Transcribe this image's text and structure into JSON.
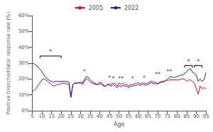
{
  "chart_data": {
    "type": "line",
    "xlabel": "Age",
    "ylabel": "Positive bronchodilator response rate (%)",
    "x": [
      5,
      6,
      7,
      8,
      9,
      10,
      11,
      12,
      13,
      14,
      15,
      16,
      17,
      18,
      19,
      20,
      21,
      22,
      23,
      24,
      25,
      26,
      27,
      28,
      29,
      30,
      31,
      32,
      33,
      34,
      35,
      36,
      37,
      38,
      39,
      40,
      41,
      42,
      43,
      44,
      45,
      46,
      47,
      48,
      49,
      50,
      51,
      52,
      53,
      54,
      55,
      56,
      57,
      58,
      59,
      60,
      61,
      62,
      63,
      64,
      65,
      66,
      67,
      68,
      69,
      70,
      71,
      72,
      73,
      74,
      75,
      76,
      77,
      78,
      79,
      80,
      81,
      82,
      83,
      84,
      85,
      86,
      87,
      88,
      89,
      90,
      91,
      92,
      93,
      94,
      95
    ],
    "series": [
      {
        "name": "2005",
        "color": "#e8001c",
        "values": [
          0.12,
          0.13,
          0.14,
          0.16,
          0.175,
          0.195,
          0.2,
          0.195,
          0.185,
          0.175,
          0.165,
          0.155,
          0.16,
          0.165,
          0.165,
          0.17,
          0.175,
          0.17,
          0.17,
          0.165,
          0.085,
          0.16,
          0.175,
          0.175,
          0.175,
          0.175,
          0.165,
          0.185,
          0.2,
          0.195,
          0.18,
          0.175,
          0.17,
          0.165,
          0.165,
          0.18,
          0.175,
          0.16,
          0.155,
          0.165,
          0.17,
          0.165,
          0.175,
          0.17,
          0.155,
          0.175,
          0.165,
          0.175,
          0.165,
          0.165,
          0.155,
          0.165,
          0.165,
          0.17,
          0.175,
          0.175,
          0.17,
          0.175,
          0.175,
          0.17,
          0.175,
          0.185,
          0.185,
          0.18,
          0.18,
          0.17,
          0.18,
          0.185,
          0.185,
          0.19,
          0.19,
          0.195,
          0.195,
          0.195,
          0.195,
          0.195,
          0.195,
          0.2,
          0.2,
          0.2,
          0.185,
          0.195,
          0.195,
          0.185,
          0.175,
          0.14,
          0.105,
          0.155,
          0.14,
          0.145,
          0.14
        ]
      },
      {
        "name": "2022",
        "color": "#1a1acd",
        "values": [
          0.3,
          0.295,
          0.285,
          0.275,
          0.26,
          0.245,
          0.225,
          0.21,
          0.2,
          0.19,
          0.185,
          0.18,
          0.185,
          0.185,
          0.185,
          0.185,
          0.185,
          0.185,
          0.185,
          0.18,
          0.085,
          0.165,
          0.175,
          0.175,
          0.175,
          0.18,
          0.175,
          0.195,
          0.215,
          0.21,
          0.195,
          0.185,
          0.175,
          0.17,
          0.165,
          0.17,
          0.165,
          0.155,
          0.155,
          0.165,
          0.16,
          0.155,
          0.165,
          0.155,
          0.145,
          0.16,
          0.15,
          0.16,
          0.155,
          0.155,
          0.145,
          0.155,
          0.155,
          0.16,
          0.16,
          0.165,
          0.16,
          0.165,
          0.165,
          0.16,
          0.165,
          0.175,
          0.175,
          0.17,
          0.17,
          0.17,
          0.175,
          0.18,
          0.18,
          0.19,
          0.2,
          0.21,
          0.215,
          0.21,
          0.21,
          0.215,
          0.22,
          0.225,
          0.225,
          0.235,
          0.245,
          0.26,
          0.265,
          0.245,
          0.235,
          0.225,
          0.185,
          0.2,
          0.185,
          0.195,
          0.24
        ]
      }
    ],
    "xlim": [
      5,
      95
    ],
    "xticks": [
      5,
      10,
      15,
      20,
      25,
      30,
      35,
      40,
      45,
      50,
      55,
      60,
      65,
      70,
      75,
      80,
      85,
      90,
      95
    ],
    "ylim": [
      0,
      0.6
    ],
    "yticks": [
      {
        "value": 0.0,
        "label": "0%"
      },
      {
        "value": 0.1,
        "label": "10%"
      },
      {
        "value": 0.2,
        "label": "20%"
      },
      {
        "value": 0.3,
        "label": "30%"
      },
      {
        "value": 0.4,
        "label": "40%"
      },
      {
        "value": 0.5,
        "label": "50%"
      },
      {
        "value": 0.6,
        "label": "60%"
      }
    ],
    "annotations": [
      {
        "x": 32,
        "y": 0.228,
        "text": "*"
      },
      {
        "x": 45,
        "y": 0.185,
        "text": "*"
      },
      {
        "x": 47,
        "y": 0.182,
        "text": "*"
      },
      {
        "x": 51,
        "y": 0.18,
        "text": "**"
      },
      {
        "x": 57,
        "y": 0.182,
        "text": "*"
      },
      {
        "x": 63,
        "y": 0.185,
        "text": "*"
      },
      {
        "x": 70,
        "y": 0.21,
        "text": "**"
      },
      {
        "x": 76,
        "y": 0.228,
        "text": "**"
      }
    ],
    "brackets": [
      {
        "x1": 9,
        "x2": 20,
        "y": 0.345,
        "text": "*"
      },
      {
        "x1": 84,
        "x2": 88,
        "y": 0.285,
        "text": "*"
      },
      {
        "x1": 89,
        "x2": 93,
        "y": 0.285,
        "text": "*"
      }
    ],
    "legend": "top",
    "grid": false
  }
}
